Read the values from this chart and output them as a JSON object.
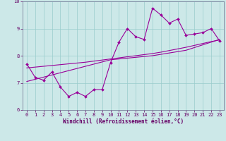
{
  "x_values": [
    0,
    1,
    2,
    3,
    4,
    5,
    6,
    7,
    8,
    9,
    10,
    11,
    12,
    13,
    14,
    15,
    16,
    17,
    18,
    19,
    20,
    21,
    22,
    23
  ],
  "y_main": [
    7.7,
    7.2,
    7.1,
    7.4,
    6.85,
    6.5,
    6.65,
    6.5,
    6.75,
    6.75,
    7.75,
    8.5,
    9.0,
    8.7,
    8.6,
    9.75,
    9.5,
    9.2,
    9.35,
    8.75,
    8.8,
    8.85,
    9.0,
    8.55
  ],
  "y_trend": [
    7.05,
    7.13,
    7.21,
    7.29,
    7.37,
    7.45,
    7.53,
    7.61,
    7.69,
    7.77,
    7.85,
    7.88,
    7.91,
    7.94,
    7.97,
    8.0,
    8.05,
    8.1,
    8.15,
    8.2,
    8.3,
    8.4,
    8.5,
    8.6
  ],
  "y_trend2": [
    7.55,
    7.58,
    7.61,
    7.64,
    7.67,
    7.7,
    7.73,
    7.76,
    7.8,
    7.84,
    7.88,
    7.92,
    7.96,
    8.0,
    8.04,
    8.08,
    8.13,
    8.19,
    8.25,
    8.31,
    8.38,
    8.45,
    8.52,
    8.58
  ],
  "line_color": "#990099",
  "bg_color": "#cce8e8",
  "grid_color": "#99cccc",
  "xlabel": "Windchill (Refroidissement éolien,°C)",
  "ylim": [
    6.0,
    10.0
  ],
  "xlim": [
    -0.5,
    23.5
  ],
  "yticks": [
    6,
    7,
    8,
    9,
    10
  ],
  "xticks": [
    0,
    1,
    2,
    3,
    4,
    5,
    6,
    7,
    8,
    9,
    10,
    11,
    12,
    13,
    14,
    15,
    16,
    17,
    18,
    19,
    20,
    21,
    22,
    23
  ],
  "tick_fontsize": 5.0,
  "xlabel_fontsize": 5.5
}
